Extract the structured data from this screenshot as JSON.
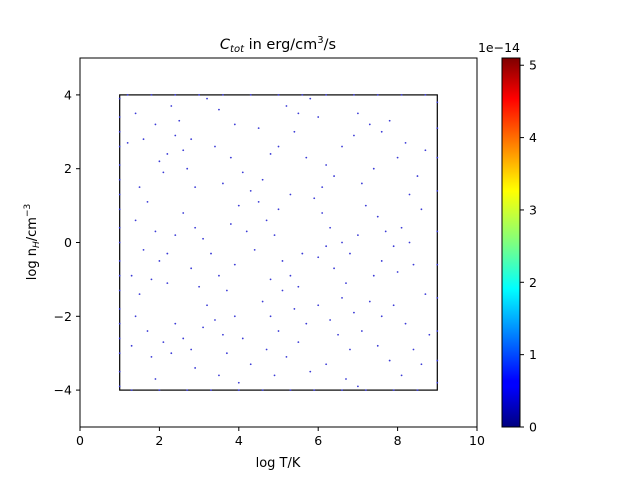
{
  "chart_data": {
    "type": "scatter",
    "title_main": "C",
    "title_sub": "tot",
    "title_rest": " in erg/cm",
    "title_sup": "3",
    "title_end": "/s",
    "xlabel": "log T/K",
    "ylabel_main": "log n",
    "ylabel_sub": "H",
    "ylabel_mid": "/cm",
    "ylabel_sup": "−3",
    "xlim": [
      0,
      10
    ],
    "ylim": [
      -5,
      5
    ],
    "xticks": [
      "0",
      "2",
      "4",
      "6",
      "8",
      "10"
    ],
    "yticks": [
      "−4",
      "−2",
      "0",
      "2",
      "4"
    ],
    "box": {
      "x": [
        1,
        9
      ],
      "y": [
        -4,
        4
      ]
    },
    "colorbar": {
      "colormap": "jet",
      "range": [
        0,
        5.1
      ],
      "ticks": [
        "0",
        "1",
        "2",
        "3",
        "4",
        "5"
      ],
      "offset_label": "1e−14"
    },
    "point_color": "#3a3ad6",
    "scatter_note": "Several hundred small points scattered across the box 1 ≤ x ≤ 9, −4 ≤ y ≤ 4, plus points along the box edges; all colored near the low end of the colormap.",
    "points": [
      [
        1.0,
        -3.9
      ],
      [
        1.0,
        -3.5
      ],
      [
        1.0,
        -3.0
      ],
      [
        1.0,
        -2.6
      ],
      [
        1.0,
        -2.2
      ],
      [
        1.0,
        -1.8
      ],
      [
        1.0,
        -1.3
      ],
      [
        1.0,
        -0.9
      ],
      [
        1.0,
        -0.5
      ],
      [
        1.0,
        0.0
      ],
      [
        1.0,
        0.4
      ],
      [
        1.0,
        0.9
      ],
      [
        1.0,
        1.3
      ],
      [
        1.0,
        1.7
      ],
      [
        1.0,
        2.1
      ],
      [
        1.0,
        2.6
      ],
      [
        1.0,
        3.0
      ],
      [
        1.0,
        3.4
      ],
      [
        1.0,
        3.9
      ],
      [
        9.0,
        -3.8
      ],
      [
        9.0,
        -3.2
      ],
      [
        9.0,
        -2.4
      ],
      [
        9.0,
        -1.5
      ],
      [
        9.0,
        -0.6
      ],
      [
        9.0,
        0.3
      ],
      [
        9.0,
        1.4
      ],
      [
        9.0,
        2.3
      ],
      [
        9.0,
        3.1
      ],
      [
        9.0,
        3.8
      ],
      [
        1.2,
        4.0
      ],
      [
        1.8,
        4.0
      ],
      [
        2.4,
        4.0
      ],
      [
        3.0,
        4.0
      ],
      [
        3.6,
        4.0
      ],
      [
        4.3,
        4.0
      ],
      [
        5.0,
        4.0
      ],
      [
        5.6,
        4.0
      ],
      [
        6.2,
        4.0
      ],
      [
        6.9,
        4.0
      ],
      [
        7.5,
        4.0
      ],
      [
        8.1,
        4.0
      ],
      [
        8.7,
        4.0
      ],
      [
        1.3,
        -4.0
      ],
      [
        2.0,
        -4.0
      ],
      [
        2.7,
        -4.0
      ],
      [
        3.3,
        -4.0
      ],
      [
        4.0,
        -4.0
      ],
      [
        4.6,
        -4.0
      ],
      [
        5.3,
        -4.0
      ],
      [
        5.9,
        -4.0
      ],
      [
        6.6,
        -4.0
      ],
      [
        7.2,
        -4.0
      ],
      [
        7.9,
        -4.0
      ],
      [
        8.5,
        -4.0
      ],
      [
        2.3,
        3.7
      ],
      [
        2.5,
        3.3
      ],
      [
        2.4,
        2.9
      ],
      [
        2.6,
        2.5
      ],
      [
        2.8,
        2.8
      ],
      [
        2.2,
        2.4
      ],
      [
        2.7,
        2.0
      ],
      [
        2.1,
        1.9
      ],
      [
        2.9,
        1.5
      ],
      [
        3.5,
        3.6
      ],
      [
        3.9,
        3.2
      ],
      [
        3.4,
        2.6
      ],
      [
        3.8,
        2.3
      ],
      [
        4.1,
        1.9
      ],
      [
        3.6,
        1.6
      ],
      [
        4.3,
        1.4
      ],
      [
        4.0,
        1.0
      ],
      [
        5.2,
        3.7
      ],
      [
        5.5,
        3.5
      ],
      [
        5.8,
        3.9
      ],
      [
        6.0,
        3.4
      ],
      [
        5.4,
        3.0
      ],
      [
        5.0,
        2.6
      ],
      [
        5.7,
        2.3
      ],
      [
        6.2,
        2.1
      ],
      [
        6.4,
        1.8
      ],
      [
        7.0,
        3.5
      ],
      [
        7.3,
        3.2
      ],
      [
        7.6,
        3.0
      ],
      [
        7.8,
        3.3
      ],
      [
        8.2,
        2.7
      ],
      [
        8.0,
        2.3
      ],
      [
        7.4,
        2.0
      ],
      [
        8.5,
        1.8
      ],
      [
        8.7,
        2.5
      ],
      [
        1.5,
        1.5
      ],
      [
        1.7,
        1.1
      ],
      [
        1.4,
        0.6
      ],
      [
        1.9,
        0.3
      ],
      [
        1.6,
        -0.2
      ],
      [
        2.0,
        -0.5
      ],
      [
        1.3,
        -0.9
      ],
      [
        1.8,
        -1.0
      ],
      [
        2.2,
        -1.1
      ],
      [
        1.5,
        -1.4
      ],
      [
        2.6,
        0.8
      ],
      [
        2.9,
        0.4
      ],
      [
        3.1,
        0.1
      ],
      [
        3.3,
        -0.3
      ],
      [
        2.8,
        -0.7
      ],
      [
        3.0,
        -1.2
      ],
      [
        3.5,
        -0.9
      ],
      [
        3.7,
        -1.3
      ],
      [
        3.9,
        -0.6
      ],
      [
        4.5,
        1.1
      ],
      [
        4.7,
        0.6
      ],
      [
        4.9,
        0.2
      ],
      [
        4.4,
        -0.2
      ],
      [
        5.1,
        -0.5
      ],
      [
        5.3,
        -0.9
      ],
      [
        4.8,
        -1.0
      ],
      [
        5.5,
        -1.2
      ],
      [
        5.6,
        -0.3
      ],
      [
        5.9,
        1.2
      ],
      [
        6.1,
        0.8
      ],
      [
        6.3,
        0.4
      ],
      [
        6.6,
        0.0
      ],
      [
        6.0,
        -0.4
      ],
      [
        6.4,
        -0.7
      ],
      [
        6.8,
        -0.3
      ],
      [
        7.0,
        0.2
      ],
      [
        6.7,
        -1.1
      ],
      [
        7.2,
        1.0
      ],
      [
        7.5,
        0.7
      ],
      [
        7.7,
        0.3
      ],
      [
        7.9,
        -0.1
      ],
      [
        8.1,
        0.4
      ],
      [
        8.3,
        0.0
      ],
      [
        7.6,
        -0.5
      ],
      [
        8.0,
        -0.8
      ],
      [
        8.4,
        -0.6
      ],
      [
        8.6,
        0.9
      ],
      [
        1.4,
        -2.0
      ],
      [
        1.7,
        -2.4
      ],
      [
        1.3,
        -2.8
      ],
      [
        1.8,
        -3.1
      ],
      [
        2.1,
        -2.7
      ],
      [
        2.4,
        -2.2
      ],
      [
        2.6,
        -2.6
      ],
      [
        2.3,
        -3.0
      ],
      [
        2.8,
        -2.9
      ],
      [
        3.2,
        -1.7
      ],
      [
        3.4,
        -2.1
      ],
      [
        3.6,
        -2.5
      ],
      [
        3.9,
        -2.0
      ],
      [
        4.1,
        -2.6
      ],
      [
        3.7,
        -3.0
      ],
      [
        4.3,
        -3.3
      ],
      [
        3.5,
        -3.6
      ],
      [
        4.0,
        -3.8
      ],
      [
        4.6,
        -1.6
      ],
      [
        4.8,
        -2.0
      ],
      [
        5.0,
        -2.4
      ],
      [
        4.7,
        -2.9
      ],
      [
        5.2,
        -3.1
      ],
      [
        5.5,
        -2.7
      ],
      [
        5.7,
        -2.2
      ],
      [
        5.4,
        -1.8
      ],
      [
        4.9,
        -3.6
      ],
      [
        6.0,
        -1.7
      ],
      [
        6.3,
        -2.1
      ],
      [
        6.6,
        -1.5
      ],
      [
        6.9,
        -1.9
      ],
      [
        6.5,
        -2.5
      ],
      [
        6.8,
        -2.9
      ],
      [
        7.1,
        -2.4
      ],
      [
        6.2,
        -3.3
      ],
      [
        6.7,
        -3.7
      ],
      [
        7.3,
        -1.6
      ],
      [
        7.6,
        -2.0
      ],
      [
        7.9,
        -1.7
      ],
      [
        8.2,
        -2.2
      ],
      [
        7.5,
        -2.8
      ],
      [
        7.8,
        -3.2
      ],
      [
        8.1,
        -3.6
      ],
      [
        8.4,
        -2.9
      ],
      [
        8.7,
        -1.4
      ],
      [
        1.6,
        2.8
      ],
      [
        1.9,
        3.2
      ],
      [
        1.4,
        3.5
      ],
      [
        2.0,
        2.2
      ],
      [
        1.2,
        2.7
      ],
      [
        3.2,
        3.9
      ],
      [
        4.5,
        3.1
      ],
      [
        4.8,
        2.4
      ],
      [
        4.6,
        1.7
      ],
      [
        6.6,
        2.6
      ],
      [
        6.9,
        2.9
      ],
      [
        7.1,
        1.6
      ],
      [
        5.3,
        1.3
      ],
      [
        5.0,
        0.9
      ],
      [
        3.8,
        0.5
      ],
      [
        4.2,
        0.3
      ],
      [
        2.4,
        0.2
      ],
      [
        2.2,
        -0.3
      ],
      [
        6.2,
        -0.1
      ],
      [
        7.4,
        -0.9
      ],
      [
        8.8,
        -2.5
      ],
      [
        8.6,
        -3.3
      ],
      [
        7.0,
        -3.9
      ],
      [
        5.8,
        -3.5
      ],
      [
        2.9,
        -3.4
      ],
      [
        1.9,
        -3.7
      ],
      [
        3.1,
        -2.3
      ],
      [
        5.1,
        -1.3
      ],
      [
        6.1,
        1.5
      ],
      [
        8.3,
        1.3
      ]
    ]
  }
}
